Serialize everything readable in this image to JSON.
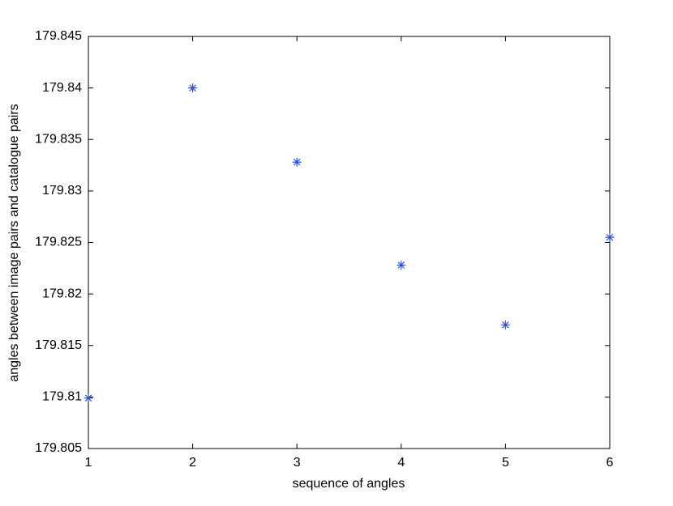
{
  "chart_data": {
    "type": "scatter",
    "xlabel": "sequence of angles",
    "ylabel": "angles between image pairs and catalogue pairs",
    "x": [
      1,
      2,
      3,
      4,
      5,
      6
    ],
    "values": [
      179.8099,
      179.84,
      179.8328,
      179.8228,
      179.817,
      179.8255
    ],
    "color": "#2b4fe0",
    "marker": "*",
    "xlim": [
      1,
      6
    ],
    "xticks": [
      1,
      2,
      3,
      4,
      5,
      6
    ],
    "ylim": [
      179.805,
      179.845
    ],
    "yticks": [
      179.805,
      179.81,
      179.815,
      179.82,
      179.825,
      179.83,
      179.835,
      179.84,
      179.845
    ],
    "grid": false
  }
}
